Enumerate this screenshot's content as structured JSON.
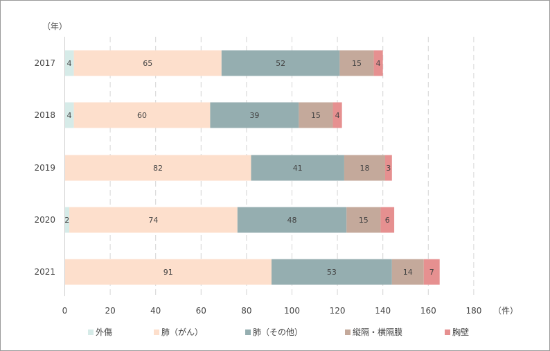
{
  "chart_data": {
    "type": "bar",
    "orientation": "horizontal",
    "stacked": true,
    "ylabel": "（年）",
    "xlabel": "（件）",
    "categories": [
      "2017",
      "2018",
      "2019",
      "2020",
      "2021"
    ],
    "xlim": [
      0,
      180
    ],
    "xticks": [
      0,
      20,
      40,
      60,
      80,
      100,
      120,
      140,
      160,
      180
    ],
    "grid": "vertical dashed",
    "legend_position": "bottom",
    "series": [
      {
        "name": "外傷",
        "color": "#d6ebe8",
        "values": [
          4,
          4,
          0,
          2,
          0
        ]
      },
      {
        "name": "肺（がん）",
        "color": "#fddfcc",
        "values": [
          65,
          60,
          82,
          74,
          91
        ]
      },
      {
        "name": "肺（その他）",
        "color": "#95aeb0",
        "values": [
          52,
          39,
          41,
          48,
          53
        ]
      },
      {
        "name": "縦隔・横隔膜",
        "color": "#c4a99b",
        "values": [
          15,
          15,
          18,
          15,
          14
        ]
      },
      {
        "name": "胸壁",
        "color": "#e69090",
        "values": [
          4,
          4,
          3,
          6,
          7
        ]
      }
    ]
  }
}
